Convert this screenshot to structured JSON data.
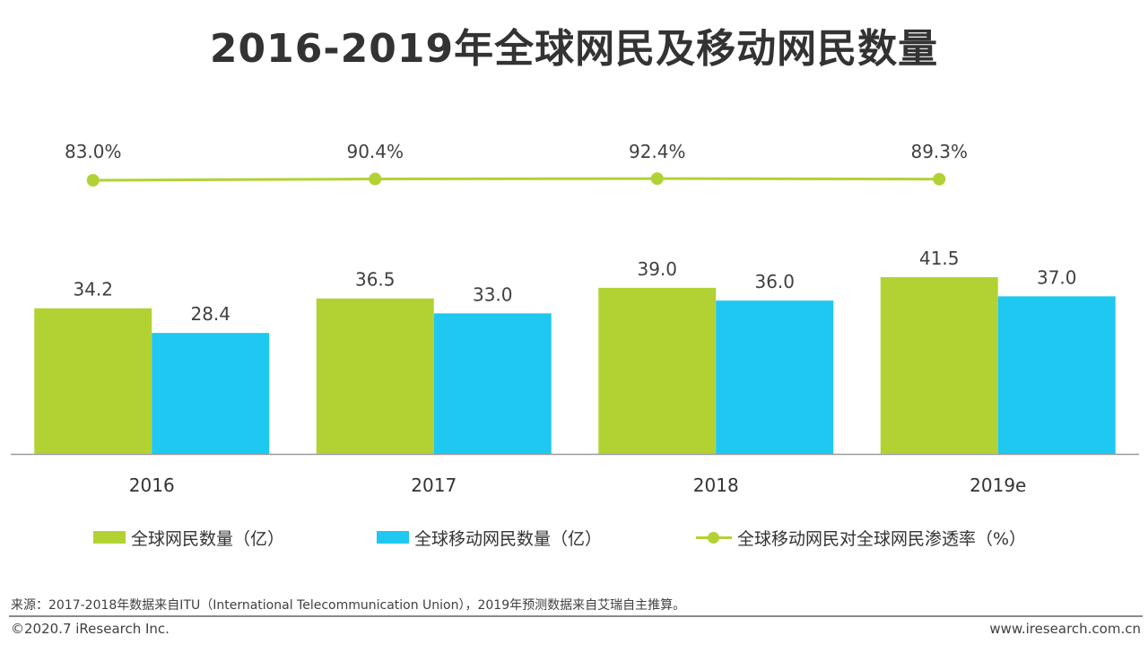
{
  "title": "2016-2019年全球网民及移动网民数量",
  "colors": {
    "green": "#b2d234",
    "blue": "#1fc8f0",
    "axis": "#999999"
  },
  "chart_data": {
    "type": "bar",
    "categories": [
      "2016",
      "2017",
      "2018",
      "2019e"
    ],
    "series": [
      {
        "name": "全球网民数量（亿）",
        "kind": "bar",
        "color": "#b2d234",
        "values": [
          34.2,
          36.5,
          39.0,
          41.5
        ],
        "labels": [
          "34.2",
          "36.5",
          "39.0",
          "41.5"
        ]
      },
      {
        "name": "全球移动网民数量（亿）",
        "kind": "bar",
        "color": "#1fc8f0",
        "values": [
          28.4,
          33.0,
          36.0,
          37.0
        ],
        "labels": [
          "28.4",
          "33.0",
          "36.0",
          "37.0"
        ]
      },
      {
        "name": "全球移动网民对全球网民渗透率（%）",
        "kind": "line",
        "color": "#b2d234",
        "values": [
          83.0,
          90.4,
          92.4,
          89.3
        ],
        "labels": [
          "83.0%",
          "90.4%",
          "92.4%",
          "89.3%"
        ]
      }
    ],
    "bar_ylim": [
      0,
      41.5
    ],
    "legend_position": "bottom"
  },
  "legend": {
    "item1": "全球网民数量（亿）",
    "item2": "全球移动网民数量（亿）",
    "item3": "全球移动网民对全球网民渗透率（%）"
  },
  "footer": {
    "source": "来源：2017-2018年数据来自ITU（International Telecommunication Union），2019年预测数据来自艾瑞自主推算。",
    "copyright": "©2020.7 iResearch Inc.",
    "url": "www.iresearch.com.cn"
  }
}
